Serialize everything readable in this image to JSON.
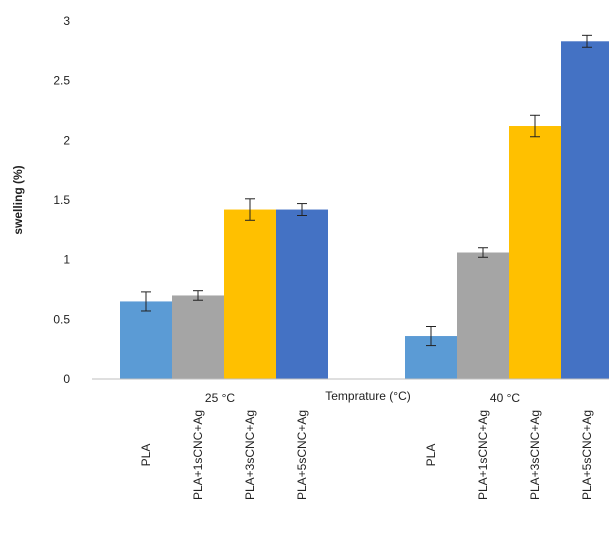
{
  "chart_data": {
    "type": "bar",
    "title": "",
    "ylabel": "swelling (%)",
    "xlabel": "Temprature (°C)",
    "ylim": [
      0,
      3
    ],
    "yticks": [
      "0",
      "0.5",
      "1",
      "1.5",
      "2",
      "2.5",
      "3"
    ],
    "grid": false,
    "legend": "none",
    "groups": [
      {
        "label": "25 °C",
        "bars": [
          {
            "category": "PLA",
            "value": 0.65,
            "error": 0.08,
            "color": "#5b9bd5"
          },
          {
            "category": "PLA+1sCNC+Ag",
            "value": 0.7,
            "error": 0.04,
            "color": "#a5a5a5"
          },
          {
            "category": "PLA+3sCNC+Ag",
            "value": 1.42,
            "error": 0.09,
            "color": "#ffc000"
          },
          {
            "category": "PLA+5sCNC+Ag",
            "value": 1.42,
            "error": 0.05,
            "color": "#4472c4"
          }
        ]
      },
      {
        "label": "40 °C",
        "bars": [
          {
            "category": "PLA",
            "value": 0.36,
            "error": 0.08,
            "color": "#5b9bd5"
          },
          {
            "category": "PLA+1sCNC+Ag",
            "value": 1.06,
            "error": 0.04,
            "color": "#a5a5a5"
          },
          {
            "category": "PLA+3sCNC+Ag",
            "value": 2.12,
            "error": 0.09,
            "color": "#ffc000"
          },
          {
            "category": "PLA+5sCNC+Ag",
            "value": 2.83,
            "error": 0.05,
            "color": "#4472c4"
          }
        ]
      }
    ]
  }
}
